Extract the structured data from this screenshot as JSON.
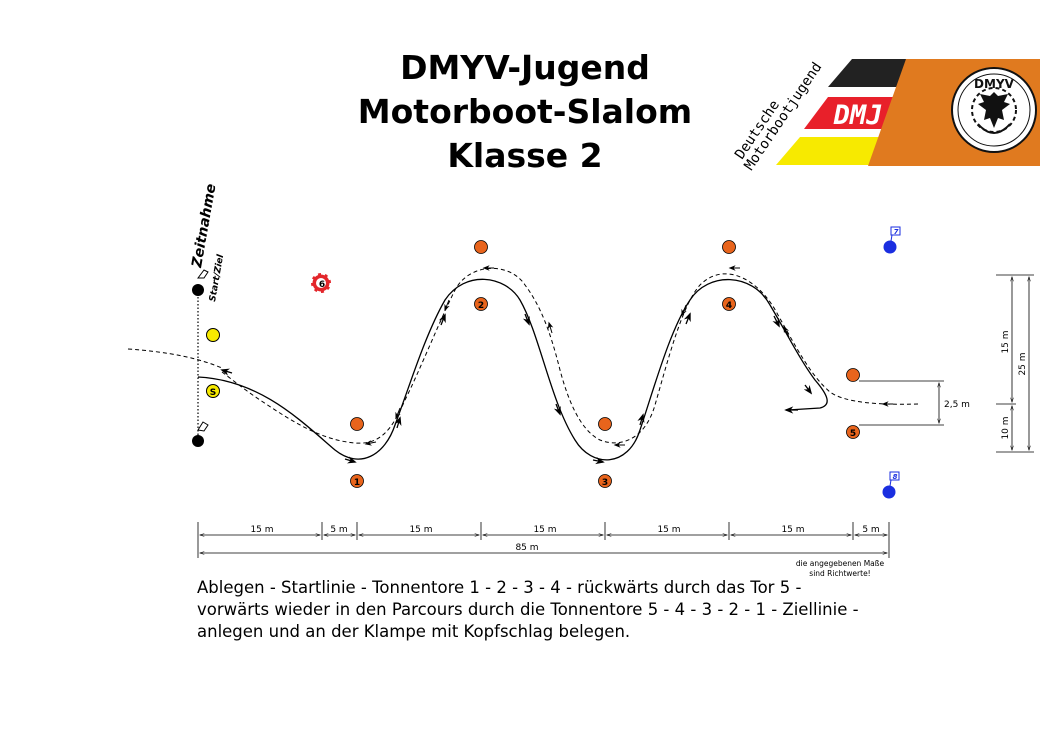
{
  "title": {
    "line1": "DMYV-Jugend",
    "line2": "Motorboot-Slalom",
    "line3": "Klasse 2"
  },
  "logo": {
    "text_line1": "Deutsche",
    "text_line2": "Motorbootjugend",
    "badge": "DMJ",
    "emblem": "DMYV",
    "colors": {
      "black": "#222222",
      "red": "#e8202a",
      "yellow": "#f7ea00",
      "orange": "#e07a1f"
    }
  },
  "labels": {
    "timing": "Zeitnahme",
    "start_finish": "Start/Ziel",
    "start_buoy": "S",
    "lifebuoy": "6",
    "flag_top": "7",
    "flag_bottom": "8",
    "note_line1": "die angegebenen Maße",
    "note_line2": "sind Richtwerte!"
  },
  "buoys": [
    "1",
    "2",
    "3",
    "4",
    "5"
  ],
  "dimensions": {
    "horizontal": [
      "15 m",
      "5 m",
      "15 m",
      "15 m",
      "15 m",
      "15 m",
      "5 m"
    ],
    "total": "85 m",
    "gate_width": "2,5 m",
    "right_upper": "15 m",
    "right_lower": "10 m",
    "right_total": "25 m"
  },
  "description": {
    "line1": "Ablegen - Startlinie - Tonnentore 1 - 2 - 3 - 4 - rückwärts durch das Tor 5 -",
    "line2": "vorwärts wieder in den Parcours durch die Tonnentore 5 - 4 - 3 - 2 - 1 - Ziellinie -",
    "line3": "anlegen und an der Klampe mit Kopfschlag belegen."
  },
  "colors": {
    "orange_buoy": "#e8641c",
    "yellow_buoy": "#f7ea00",
    "blue_buoy": "#1a2ee0",
    "lifebuoy_red": "#e3262b"
  }
}
